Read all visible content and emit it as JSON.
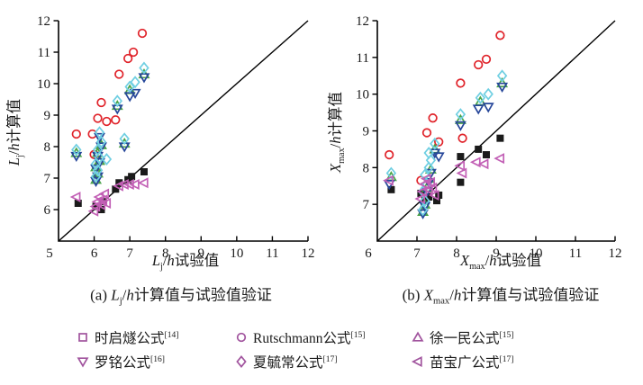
{
  "figure": {
    "background": "#ffffff",
    "text_color": "#1a1a1a",
    "legend_marker_color": "#a1549e",
    "plots": {
      "a": {
        "caption": {
          "prefix": "(a) ",
          "var1": "L",
          "sub": "j",
          "mid": "/",
          "var2": "h",
          "suffix": "计算值与试验值验证"
        },
        "xlabel": {
          "var1": "L",
          "sub": "j",
          "mid": "/",
          "var2": "h",
          "suffix": "试验值"
        },
        "ylabel": {
          "var1": "L",
          "sub": "j",
          "mid": "/",
          "var2": "h",
          "suffix": "计算值"
        }
      },
      "b": {
        "caption": {
          "prefix": "(b) ",
          "var1": "X",
          "sub": "max",
          "mid": "/",
          "var2": "h",
          "suffix": "计算值与试验值验证"
        },
        "xlabel": {
          "var1": "X",
          "sub": "max",
          "mid": "/",
          "var2": "h",
          "suffix": "试验值"
        },
        "ylabel": {
          "var1": "X",
          "sub": "max",
          "mid": "/",
          "var2": "h",
          "suffix": "计算值"
        }
      }
    },
    "legend": [
      {
        "marker": "square",
        "label": "时启燧公式",
        "ref": "[14]"
      },
      {
        "marker": "circle",
        "label": "Rutschmann公式",
        "ref": "[15]"
      },
      {
        "marker": "triangle-up",
        "label": "徐一民公式",
        "ref": "[15]"
      },
      {
        "marker": "triangle-down",
        "label": "罗铭公式",
        "ref": "[16]"
      },
      {
        "marker": "diamond",
        "label": "夏毓常公式",
        "ref": "[17]"
      },
      {
        "marker": "triangle-left",
        "label": "苗宝广公式",
        "ref": "[17]"
      }
    ]
  },
  "chart_data": [
    {
      "type": "scatter",
      "title": "(a) Lj/h计算值与试验值验证",
      "xlabel": "Lj/h试验值",
      "ylabel": "Lj/h计算值",
      "xlim": [
        5,
        12
      ],
      "ylim": [
        5,
        12
      ],
      "x_ticks": [
        5,
        6,
        7,
        8,
        9,
        10,
        11,
        12
      ],
      "y_ticks": [
        6,
        7,
        8,
        9,
        10,
        11,
        12
      ],
      "reference_line": "y=x",
      "legend_position": "below-figure",
      "grid": false,
      "series": [
        {
          "name": "时启燧公式[14]",
          "marker": "square",
          "color": "#1a1a1a",
          "fill": true,
          "points": [
            [
              5.55,
              6.2
            ],
            [
              6.05,
              6.1
            ],
            [
              6.2,
              6.0
            ],
            [
              6.25,
              6.25
            ],
            [
              6.6,
              6.65
            ],
            [
              6.7,
              6.85
            ],
            [
              6.95,
              6.95
            ],
            [
              7.05,
              7.05
            ],
            [
              7.4,
              7.2
            ]
          ]
        },
        {
          "name": "Rutschmann公式[15]",
          "marker": "circle",
          "color": "#e0232a",
          "fill": false,
          "points": [
            [
              5.5,
              8.4
            ],
            [
              5.95,
              8.4
            ],
            [
              6.0,
              7.75
            ],
            [
              6.1,
              8.9
            ],
            [
              6.2,
              9.4
            ],
            [
              6.35,
              8.8
            ],
            [
              6.6,
              8.85
            ],
            [
              6.7,
              10.3
            ],
            [
              6.95,
              10.8
            ],
            [
              7.1,
              11.0
            ],
            [
              7.35,
              11.6
            ]
          ]
        },
        {
          "name": "徐一民公式[15]",
          "marker": "triangle-up",
          "color": "#4aa348",
          "fill": false,
          "points": [
            [
              5.5,
              7.8
            ],
            [
              6.05,
              6.95
            ],
            [
              6.1,
              7.15
            ],
            [
              6.05,
              7.35
            ],
            [
              6.15,
              7.55
            ],
            [
              6.1,
              7.8
            ],
            [
              6.2,
              8.05
            ],
            [
              6.85,
              8.1
            ],
            [
              6.65,
              9.3
            ],
            [
              7.0,
              9.8
            ],
            [
              7.4,
              10.3
            ]
          ]
        },
        {
          "name": "罗铭公式[16]",
          "marker": "triangle-down",
          "color": "#27479a",
          "fill": false,
          "points": [
            [
              5.5,
              7.7
            ],
            [
              6.05,
              6.9
            ],
            [
              6.1,
              7.05
            ],
            [
              6.05,
              7.3
            ],
            [
              6.15,
              7.5
            ],
            [
              6.1,
              7.7
            ],
            [
              6.2,
              8.0
            ],
            [
              6.15,
              8.3
            ],
            [
              6.85,
              8.0
            ],
            [
              6.65,
              9.2
            ],
            [
              7.0,
              9.6
            ],
            [
              7.15,
              9.7
            ],
            [
              7.4,
              10.2
            ]
          ]
        },
        {
          "name": "夏毓常公式[17]",
          "marker": "diamond",
          "color": "#6fcfe2",
          "fill": false,
          "points": [
            [
              5.5,
              7.9
            ],
            [
              6.05,
              7.05
            ],
            [
              6.1,
              7.25
            ],
            [
              6.05,
              7.45
            ],
            [
              6.15,
              7.65
            ],
            [
              6.1,
              7.9
            ],
            [
              6.2,
              8.15
            ],
            [
              6.15,
              8.45
            ],
            [
              6.35,
              7.6
            ],
            [
              6.85,
              8.25
            ],
            [
              6.65,
              9.45
            ],
            [
              7.0,
              9.9
            ],
            [
              7.15,
              10.05
            ],
            [
              7.4,
              10.5
            ]
          ]
        },
        {
          "name": "苗宝广公式[17]",
          "marker": "triangle-left",
          "color": "#c25fb5",
          "fill": false,
          "points": [
            [
              5.5,
              6.4
            ],
            [
              6.0,
              5.95
            ],
            [
              6.05,
              6.1
            ],
            [
              6.1,
              6.25
            ],
            [
              6.15,
              6.4
            ],
            [
              6.2,
              6.15
            ],
            [
              6.25,
              6.3
            ],
            [
              6.3,
              6.5
            ],
            [
              6.35,
              6.2
            ],
            [
              6.7,
              6.75
            ],
            [
              6.85,
              6.8
            ],
            [
              7.0,
              6.8
            ],
            [
              7.15,
              6.8
            ],
            [
              7.4,
              6.85
            ]
          ]
        }
      ]
    },
    {
      "type": "scatter",
      "title": "(b) Xmax/h计算值与试验值验证",
      "xlabel": "Xmax/h试验值",
      "ylabel": "Xmax/h计算值",
      "xlim": [
        6,
        12
      ],
      "ylim": [
        6,
        12
      ],
      "x_ticks": [
        6,
        7,
        8,
        9,
        10,
        11,
        12
      ],
      "y_ticks": [
        7,
        8,
        9,
        10,
        11,
        12
      ],
      "reference_line": "y=x",
      "legend_position": "below-figure",
      "grid": false,
      "series": [
        {
          "name": "时启燧公式[14]",
          "marker": "square",
          "color": "#1a1a1a",
          "fill": true,
          "points": [
            [
              6.35,
              7.4
            ],
            [
              7.1,
              7.3
            ],
            [
              7.2,
              7.1
            ],
            [
              7.3,
              7.2
            ],
            [
              7.5,
              7.1
            ],
            [
              7.55,
              7.25
            ],
            [
              8.1,
              7.6
            ],
            [
              8.1,
              8.3
            ],
            [
              8.55,
              8.5
            ],
            [
              8.75,
              8.35
            ],
            [
              9.1,
              8.8
            ]
          ]
        },
        {
          "name": "Rutschmann公式[15]",
          "marker": "circle",
          "color": "#e0232a",
          "fill": false,
          "points": [
            [
              6.3,
              8.35
            ],
            [
              7.1,
              7.65
            ],
            [
              7.25,
              8.95
            ],
            [
              7.4,
              9.35
            ],
            [
              7.55,
              8.7
            ],
            [
              8.15,
              8.8
            ],
            [
              8.1,
              10.3
            ],
            [
              8.55,
              10.8
            ],
            [
              8.75,
              10.95
            ],
            [
              9.1,
              11.6
            ]
          ]
        },
        {
          "name": "徐一民公式[15]",
          "marker": "triangle-up",
          "color": "#4aa348",
          "fill": false,
          "points": [
            [
              6.35,
              7.75
            ],
            [
              7.15,
              6.8
            ],
            [
              7.2,
              7.0
            ],
            [
              7.25,
              7.45
            ],
            [
              7.3,
              7.7
            ],
            [
              7.35,
              7.95
            ],
            [
              7.45,
              8.5
            ],
            [
              8.1,
              9.3
            ],
            [
              8.6,
              9.8
            ],
            [
              9.15,
              10.3
            ]
          ]
        },
        {
          "name": "罗铭公式[16]",
          "marker": "triangle-down",
          "color": "#27479a",
          "fill": false,
          "points": [
            [
              6.3,
              7.55
            ],
            [
              7.15,
              6.75
            ],
            [
              7.2,
              6.95
            ],
            [
              7.25,
              7.35
            ],
            [
              7.3,
              7.6
            ],
            [
              7.35,
              7.85
            ],
            [
              7.45,
              8.4
            ],
            [
              7.55,
              8.3
            ],
            [
              8.1,
              9.15
            ],
            [
              8.55,
              9.6
            ],
            [
              8.8,
              9.65
            ],
            [
              9.15,
              10.2
            ]
          ]
        },
        {
          "name": "夏毓常公式[17]",
          "marker": "diamond",
          "color": "#6fcfe2",
          "fill": false,
          "points": [
            [
              6.35,
              7.85
            ],
            [
              7.15,
              6.85
            ],
            [
              7.2,
              7.1
            ],
            [
              7.15,
              7.35
            ],
            [
              7.25,
              7.55
            ],
            [
              7.2,
              7.8
            ],
            [
              7.3,
              8.0
            ],
            [
              7.35,
              8.2
            ],
            [
              7.3,
              8.4
            ],
            [
              7.45,
              8.65
            ],
            [
              8.1,
              9.45
            ],
            [
              8.6,
              9.9
            ],
            [
              8.8,
              10.0
            ],
            [
              9.15,
              10.5
            ]
          ]
        },
        {
          "name": "苗宝广公式[17]",
          "marker": "triangle-left",
          "color": "#c25fb5",
          "fill": false,
          "points": [
            [
              6.3,
              7.65
            ],
            [
              7.1,
              7.15
            ],
            [
              7.15,
              7.35
            ],
            [
              7.2,
              7.55
            ],
            [
              7.25,
              7.7
            ],
            [
              7.3,
              7.4
            ],
            [
              7.35,
              7.6
            ],
            [
              7.4,
              7.45
            ],
            [
              7.45,
              7.25
            ],
            [
              8.1,
              8.05
            ],
            [
              8.15,
              7.85
            ],
            [
              8.5,
              8.15
            ],
            [
              8.7,
              8.1
            ],
            [
              9.1,
              8.25
            ]
          ]
        }
      ]
    }
  ]
}
